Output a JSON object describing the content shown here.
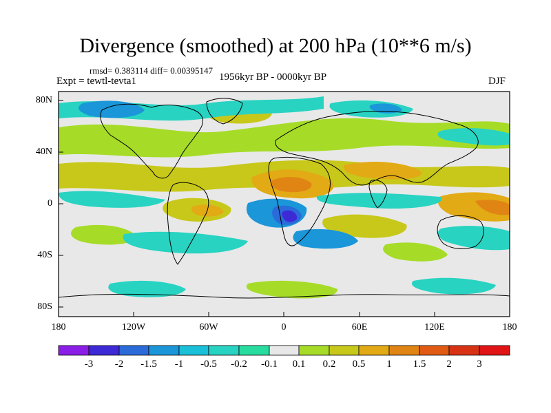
{
  "title": "Divergence (smoothed) at 200 hPa (10**6 m/s)",
  "stats": "rmsd= 0.383114 diff= 0.00395147",
  "experiment": "Expt = tewtl-tevta1",
  "period": "1956kyr BP - 0000kyr BP",
  "season": "DJF",
  "map": {
    "lat_labels": [
      "80N",
      "40N",
      "0",
      "40S",
      "80S"
    ],
    "lon_labels": [
      "180",
      "120W",
      "60W",
      "0",
      "60E",
      "120E",
      "180"
    ]
  },
  "colorbar": {
    "labels": [
      "-3",
      "-2",
      "-1.5",
      "-1",
      "-0.5",
      "-0.2",
      "-0.1",
      "0.1",
      "0.2",
      "0.5",
      "1",
      "1.5",
      "2",
      "3"
    ],
    "colors": [
      "#8a1ee6",
      "#3d2ad6",
      "#2a6ad9",
      "#1a96d9",
      "#19c0d8",
      "#28d3c2",
      "#28dca0",
      "#e8e8e8",
      "#a6dc28",
      "#c8c81a",
      "#e2aa14",
      "#e08414",
      "#e05a14",
      "#d83214",
      "#e01414"
    ]
  },
  "fill_colors": {
    "background": "#e8e8e8",
    "neg_light": "#28d3c2",
    "neg_mid": "#1a96d9",
    "neg_strong": "#2a6ad9",
    "neg_max": "#3d2ad6",
    "pos_light": "#a6dc28",
    "pos_mid": "#c8c81a",
    "pos_strong": "#e2aa14",
    "pos_max": "#e08414"
  }
}
